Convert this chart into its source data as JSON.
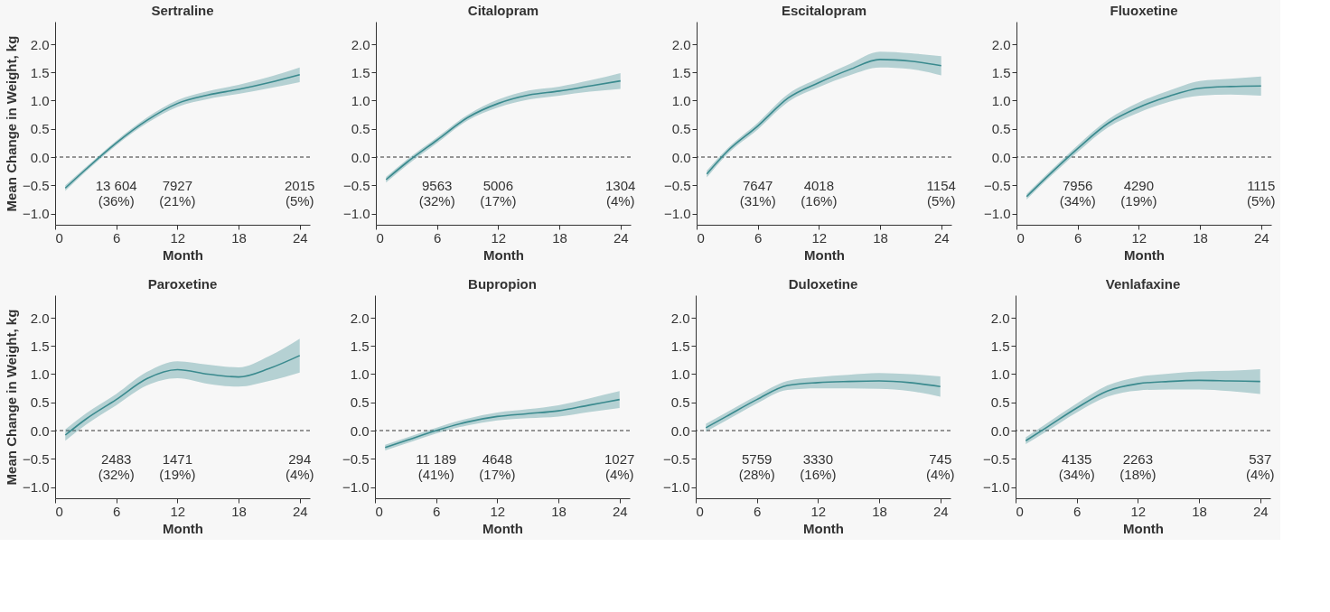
{
  "chart_data": [
    {
      "type": "line",
      "title": "Sertraline",
      "xlabel": "Month",
      "ylabel": "Mean Change in Weight, kg",
      "x": [
        1,
        3,
        6,
        9,
        12,
        15,
        18,
        21,
        24
      ],
      "series": [
        {
          "color": "#3a8a8e",
          "values": [
            -0.55,
            -0.22,
            0.25,
            0.65,
            0.95,
            1.1,
            1.2,
            1.32,
            1.46
          ],
          "lower": [
            -0.6,
            -0.26,
            0.21,
            0.6,
            0.89,
            1.03,
            1.12,
            1.22,
            1.33
          ],
          "upper": [
            -0.5,
            -0.18,
            0.29,
            0.7,
            1.01,
            1.17,
            1.28,
            1.42,
            1.59
          ]
        }
      ],
      "xlim": [
        0,
        25
      ],
      "ylim": [
        -1.2,
        2.4
      ],
      "xticks": [
        0,
        6,
        12,
        18,
        24
      ],
      "yticks": [
        {
          "value": -1,
          "label": "−1.0"
        },
        {
          "value": -0.5,
          "label": "−0.5"
        },
        {
          "value": 0,
          "label": "0.0"
        },
        {
          "value": 0.5,
          "label": "0.5"
        },
        {
          "value": 1,
          "label": "1.0"
        },
        {
          "value": 1.5,
          "label": "1.5"
        },
        {
          "value": 2,
          "label": "2.0"
        }
      ],
      "ref_lines": [
        {
          "axis": "y",
          "value": 0,
          "line_style": "dashed",
          "color": "#333333"
        }
      ],
      "annotations": [
        "13 604\n(36%)",
        "7927\n(21%)",
        "2015\n(5%)"
      ]
    },
    {
      "type": "line",
      "title": "Citalopram",
      "xlabel": "Month",
      "x": [
        1,
        3,
        6,
        9,
        12,
        15,
        18,
        21,
        24
      ],
      "series": [
        {
          "color": "#3a8a8e",
          "values": [
            -0.4,
            -0.1,
            0.3,
            0.7,
            0.95,
            1.1,
            1.17,
            1.26,
            1.35
          ],
          "lower": [
            -0.45,
            -0.15,
            0.25,
            0.65,
            0.88,
            1.02,
            1.09,
            1.16,
            1.21
          ],
          "upper": [
            -0.35,
            -0.05,
            0.35,
            0.75,
            1.02,
            1.18,
            1.25,
            1.36,
            1.49
          ]
        }
      ],
      "xlim": [
        0,
        25
      ],
      "ylim": [
        -1.2,
        2.4
      ],
      "xticks": [
        0,
        6,
        12,
        18,
        24
      ],
      "yticks": [
        {
          "value": -1,
          "label": "−1.0"
        },
        {
          "value": -0.5,
          "label": "−0.5"
        },
        {
          "value": 0,
          "label": "0.0"
        },
        {
          "value": 0.5,
          "label": "0.5"
        },
        {
          "value": 1,
          "label": "1.0"
        },
        {
          "value": 1.5,
          "label": "1.5"
        },
        {
          "value": 2,
          "label": "2.0"
        }
      ],
      "ref_lines": [
        {
          "axis": "y",
          "value": 0,
          "line_style": "dashed",
          "color": "#333333"
        }
      ],
      "annotations": [
        "9563\n(32%)",
        "5006\n(17%)",
        "1304\n(4%)"
      ]
    },
    {
      "type": "line",
      "title": "Escitalopram",
      "xlabel": "Month",
      "x": [
        1,
        3,
        6,
        9,
        12,
        15,
        18,
        21,
        24
      ],
      "series": [
        {
          "color": "#3a8a8e",
          "values": [
            -0.3,
            0.1,
            0.55,
            1.05,
            1.32,
            1.55,
            1.73,
            1.7,
            1.62
          ],
          "lower": [
            -0.36,
            0.05,
            0.49,
            0.98,
            1.24,
            1.45,
            1.59,
            1.56,
            1.45
          ],
          "upper": [
            -0.24,
            0.15,
            0.61,
            1.12,
            1.4,
            1.65,
            1.87,
            1.84,
            1.79
          ]
        }
      ],
      "xlim": [
        0,
        25
      ],
      "ylim": [
        -1.2,
        2.4
      ],
      "xticks": [
        0,
        6,
        12,
        18,
        24
      ],
      "yticks": [
        {
          "value": -1,
          "label": "−1.0"
        },
        {
          "value": -0.5,
          "label": "−0.5"
        },
        {
          "value": 0,
          "label": "0.0"
        },
        {
          "value": 0.5,
          "label": "0.5"
        },
        {
          "value": 1,
          "label": "1.0"
        },
        {
          "value": 1.5,
          "label": "1.5"
        },
        {
          "value": 2,
          "label": "2.0"
        }
      ],
      "ref_lines": [
        {
          "axis": "y",
          "value": 0,
          "line_style": "dashed",
          "color": "#333333"
        }
      ],
      "annotations": [
        "7647\n(31%)",
        "4018\n(16%)",
        "1154\n(5%)"
      ]
    },
    {
      "type": "line",
      "title": "Fluoxetine",
      "xlabel": "Month",
      "x": [
        1,
        3,
        6,
        9,
        12,
        15,
        18,
        21,
        24
      ],
      "series": [
        {
          "color": "#3a8a8e",
          "values": [
            -0.7,
            -0.35,
            0.15,
            0.6,
            0.88,
            1.08,
            1.22,
            1.25,
            1.26
          ],
          "lower": [
            -0.75,
            -0.4,
            0.09,
            0.53,
            0.79,
            0.98,
            1.09,
            1.11,
            1.09
          ],
          "upper": [
            -0.65,
            -0.3,
            0.21,
            0.67,
            0.97,
            1.18,
            1.35,
            1.39,
            1.43
          ]
        }
      ],
      "xlim": [
        0,
        25
      ],
      "ylim": [
        -1.2,
        2.4
      ],
      "xticks": [
        0,
        6,
        12,
        18,
        24
      ],
      "yticks": [
        {
          "value": -1,
          "label": "−1.0"
        },
        {
          "value": -0.5,
          "label": "−0.5"
        },
        {
          "value": 0,
          "label": "0.0"
        },
        {
          "value": 0.5,
          "label": "0.5"
        },
        {
          "value": 1,
          "label": "1.0"
        },
        {
          "value": 1.5,
          "label": "1.5"
        },
        {
          "value": 2,
          "label": "2.0"
        }
      ],
      "ref_lines": [
        {
          "axis": "y",
          "value": 0,
          "line_style": "dashed",
          "color": "#333333"
        }
      ],
      "annotations": [
        "7956\n(34%)",
        "4290\n(19%)",
        "1115\n(5%)"
      ]
    },
    {
      "type": "line",
      "title": "Paroxetine",
      "xlabel": "Month",
      "ylabel": "Mean Change in Weight, kg",
      "x": [
        1,
        3,
        6,
        9,
        12,
        15,
        18,
        21,
        24
      ],
      "series": [
        {
          "color": "#3a8a8e",
          "values": [
            -0.08,
            0.2,
            0.55,
            0.92,
            1.08,
            1.0,
            0.95,
            1.1,
            1.33
          ],
          "lower": [
            -0.18,
            0.1,
            0.45,
            0.8,
            0.93,
            0.83,
            0.78,
            0.88,
            1.03
          ],
          "upper": [
            0.02,
            0.3,
            0.65,
            1.04,
            1.23,
            1.17,
            1.12,
            1.32,
            1.63
          ]
        }
      ],
      "xlim": [
        0,
        25
      ],
      "ylim": [
        -1.2,
        2.4
      ],
      "xticks": [
        0,
        6,
        12,
        18,
        24
      ],
      "yticks": [
        {
          "value": -1,
          "label": "−1.0"
        },
        {
          "value": -0.5,
          "label": "−0.5"
        },
        {
          "value": 0,
          "label": "0.0"
        },
        {
          "value": 0.5,
          "label": "0.5"
        },
        {
          "value": 1,
          "label": "1.0"
        },
        {
          "value": 1.5,
          "label": "1.5"
        },
        {
          "value": 2,
          "label": "2.0"
        }
      ],
      "ref_lines": [
        {
          "axis": "y",
          "value": 0,
          "line_style": "dashed",
          "color": "#333333"
        }
      ],
      "annotations": [
        "2483\n(32%)",
        "1471\n(19%)",
        "294\n(4%)"
      ]
    },
    {
      "type": "line",
      "title": "Bupropion",
      "xlabel": "Month",
      "x": [
        1,
        3,
        6,
        9,
        12,
        15,
        18,
        21,
        24
      ],
      "series": [
        {
          "color": "#3a8a8e",
          "values": [
            -0.3,
            -0.18,
            0.0,
            0.15,
            0.25,
            0.3,
            0.35,
            0.45,
            0.55
          ],
          "lower": [
            -0.35,
            -0.23,
            -0.05,
            0.09,
            0.18,
            0.22,
            0.25,
            0.33,
            0.4
          ],
          "upper": [
            -0.25,
            -0.13,
            0.05,
            0.21,
            0.32,
            0.38,
            0.45,
            0.57,
            0.7
          ]
        }
      ],
      "xlim": [
        0,
        25
      ],
      "ylim": [
        -1.2,
        2.4
      ],
      "xticks": [
        0,
        6,
        12,
        18,
        24
      ],
      "yticks": [
        {
          "value": -1,
          "label": "−1.0"
        },
        {
          "value": -0.5,
          "label": "−0.5"
        },
        {
          "value": 0,
          "label": "0.0"
        },
        {
          "value": 0.5,
          "label": "0.5"
        },
        {
          "value": 1,
          "label": "1.0"
        },
        {
          "value": 1.5,
          "label": "1.5"
        },
        {
          "value": 2,
          "label": "2.0"
        }
      ],
      "ref_lines": [
        {
          "axis": "y",
          "value": 0,
          "line_style": "dashed",
          "color": "#333333"
        }
      ],
      "annotations": [
        "11 189\n(41%)",
        "4648\n(17%)",
        "1027\n(4%)"
      ]
    },
    {
      "type": "line",
      "title": "Duloxetine",
      "xlabel": "Month",
      "x": [
        1,
        3,
        6,
        9,
        12,
        15,
        18,
        21,
        24
      ],
      "series": [
        {
          "color": "#3a8a8e",
          "values": [
            0.05,
            0.25,
            0.55,
            0.8,
            0.85,
            0.87,
            0.88,
            0.85,
            0.78
          ],
          "lower": [
            -0.02,
            0.18,
            0.48,
            0.72,
            0.75,
            0.75,
            0.74,
            0.7,
            0.6
          ],
          "upper": [
            0.12,
            0.32,
            0.62,
            0.88,
            0.95,
            0.99,
            1.02,
            1.0,
            0.96
          ]
        }
      ],
      "xlim": [
        0,
        25
      ],
      "ylim": [
        -1.2,
        2.4
      ],
      "xticks": [
        0,
        6,
        12,
        18,
        24
      ],
      "yticks": [
        {
          "value": -1,
          "label": "−1.0"
        },
        {
          "value": -0.5,
          "label": "−0.5"
        },
        {
          "value": 0,
          "label": "0.0"
        },
        {
          "value": 0.5,
          "label": "0.5"
        },
        {
          "value": 1,
          "label": "1.0"
        },
        {
          "value": 1.5,
          "label": "1.5"
        },
        {
          "value": 2,
          "label": "2.0"
        }
      ],
      "ref_lines": [
        {
          "axis": "y",
          "value": 0,
          "line_style": "dashed",
          "color": "#333333"
        }
      ],
      "annotations": [
        "5759\n(28%)",
        "3330\n(16%)",
        "745\n(4%)"
      ]
    },
    {
      "type": "line",
      "title": "Venlafaxine",
      "xlabel": "Month",
      "x": [
        1,
        3,
        6,
        9,
        12,
        15,
        18,
        21,
        24
      ],
      "series": [
        {
          "color": "#3a8a8e",
          "values": [
            -0.18,
            0.05,
            0.4,
            0.7,
            0.83,
            0.87,
            0.89,
            0.88,
            0.87
          ],
          "lower": [
            -0.24,
            -0.02,
            0.32,
            0.6,
            0.71,
            0.73,
            0.73,
            0.7,
            0.65
          ],
          "upper": [
            -0.12,
            0.12,
            0.48,
            0.8,
            0.95,
            1.01,
            1.05,
            1.06,
            1.09
          ]
        }
      ],
      "xlim": [
        0,
        25
      ],
      "ylim": [
        -1.2,
        2.4
      ],
      "xticks": [
        0,
        6,
        12,
        18,
        24
      ],
      "yticks": [
        {
          "value": -1,
          "label": "−1.0"
        },
        {
          "value": -0.5,
          "label": "−0.5"
        },
        {
          "value": 0,
          "label": "0.0"
        },
        {
          "value": 0.5,
          "label": "0.5"
        },
        {
          "value": 1,
          "label": "1.0"
        },
        {
          "value": 1.5,
          "label": "1.5"
        },
        {
          "value": 2,
          "label": "2.0"
        }
      ],
      "ref_lines": [
        {
          "axis": "y",
          "value": 0,
          "line_style": "dashed",
          "color": "#333333"
        }
      ],
      "annotations": [
        "4135\n(34%)",
        "2263\n(18%)",
        "537\n(4%)"
      ]
    }
  ]
}
